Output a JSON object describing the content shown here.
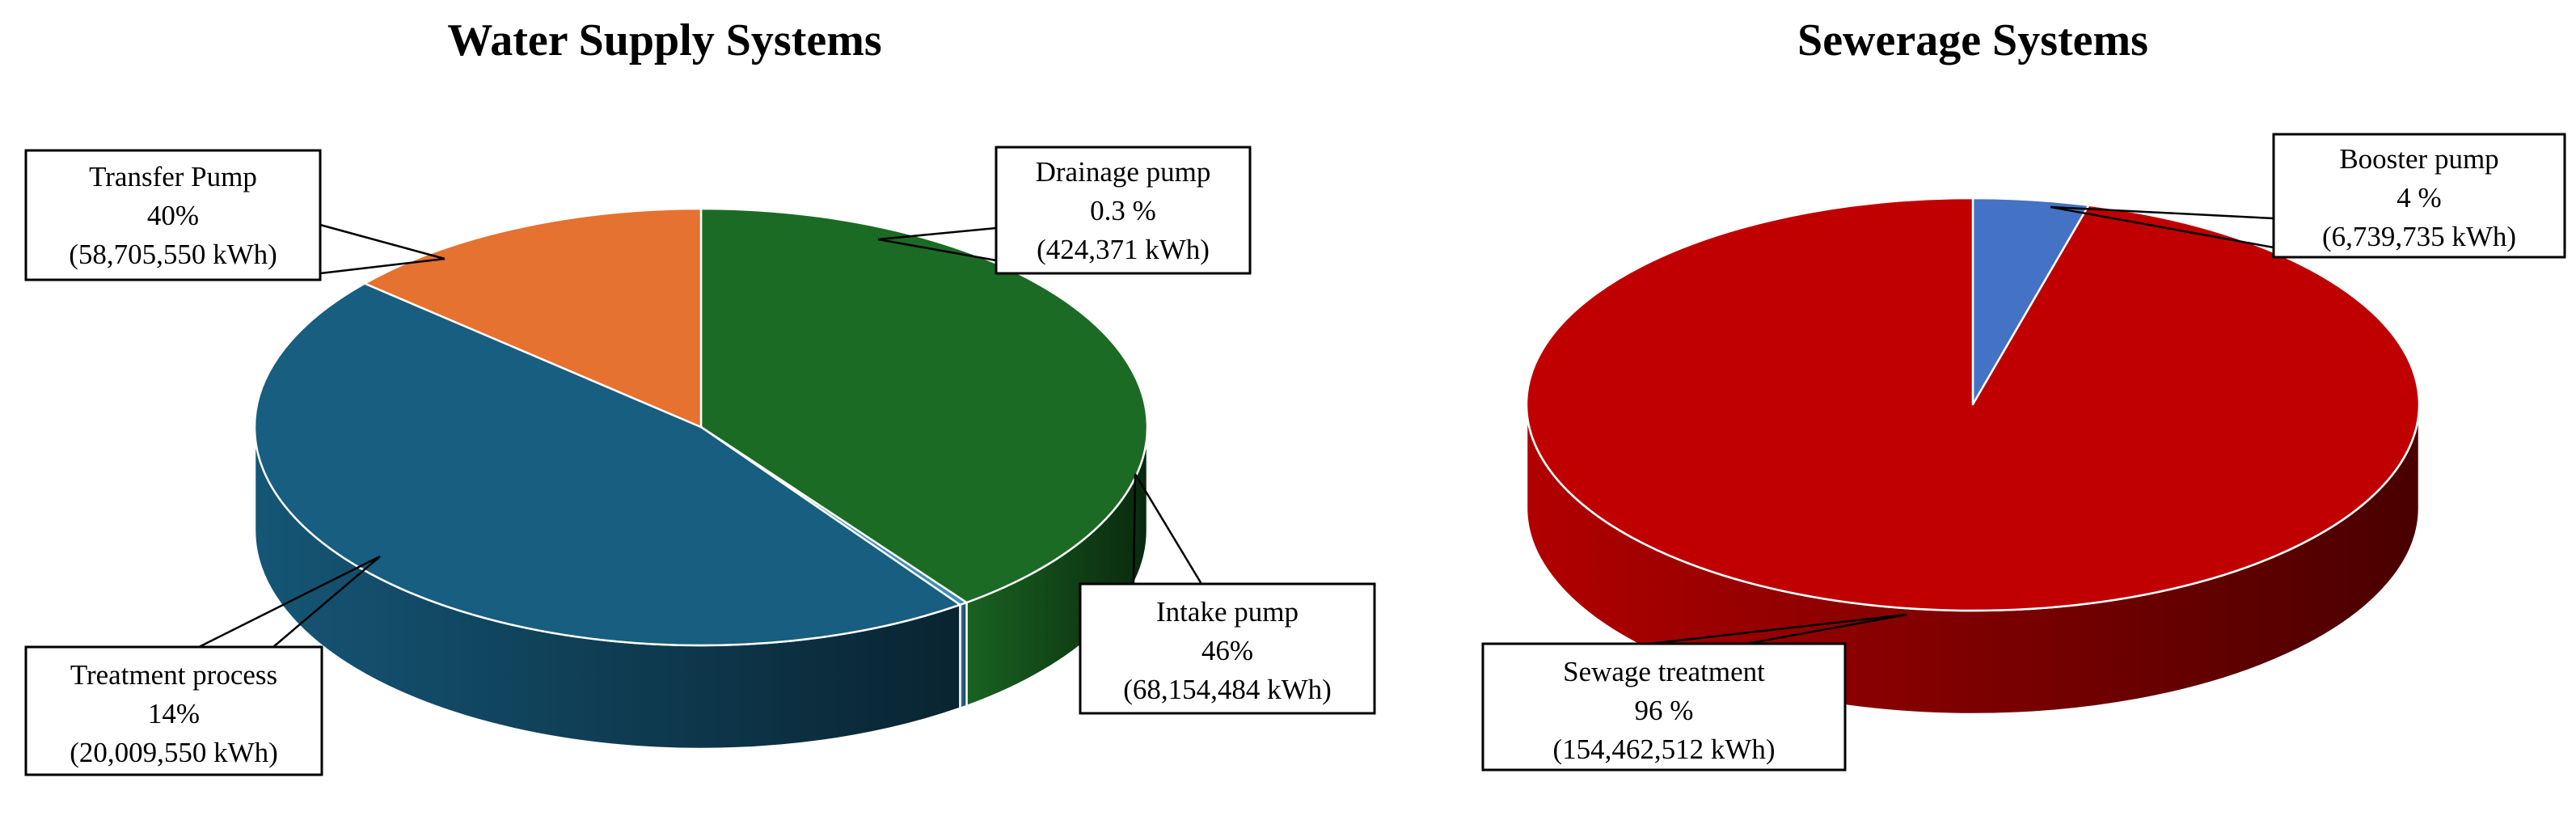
{
  "chart_data": [
    {
      "type": "pie",
      "title": "Water Supply Systems",
      "slices": [
        {
          "label": "Transfer Pump",
          "percent_label": "40%",
          "energy_label": "(58,705,550 kWh)",
          "value": 58705550,
          "color": "#1b6b24"
        },
        {
          "label": "Drainage pump",
          "percent_label": "0.3 %",
          "energy_label": "(424,371 kWh)",
          "value": 424371,
          "color": "#3f8fb8"
        },
        {
          "label": "Intake pump",
          "percent_label": "46%",
          "energy_label": "(68,154,484 kWh)",
          "value": 68154484,
          "color": "#175e80"
        },
        {
          "label": "Treatment process",
          "percent_label": "14%",
          "energy_label": "(20,009,550 kWh)",
          "value": 20009550,
          "color": "#e57230"
        }
      ]
    },
    {
      "type": "pie",
      "title": "Sewerage Systems",
      "slices": [
        {
          "label": "Booster pump",
          "percent_label": "4 %",
          "energy_label": "(6,739,735 kWh)",
          "value": 6739735,
          "color": "#4472c4"
        },
        {
          "label": "Sewage treatment",
          "percent_label": "96 %",
          "energy_label": "(154,462,512 kWh)",
          "value": 154462512,
          "color": "#c00000"
        }
      ]
    }
  ]
}
